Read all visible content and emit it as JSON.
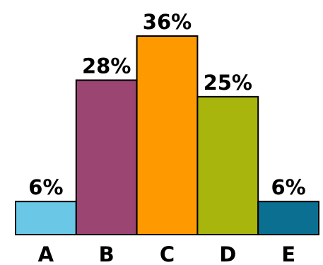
{
  "chart_data": {
    "type": "bar",
    "title": "",
    "xlabel": "",
    "ylabel": "",
    "categories": [
      "A",
      "B",
      "C",
      "D",
      "E"
    ],
    "values": [
      6,
      28,
      36,
      25,
      6
    ],
    "value_labels": [
      "6%",
      "28%",
      "36%",
      "25%",
      "6%"
    ],
    "colors": [
      "#6ac8e6",
      "#9a4572",
      "#ff9900",
      "#a8b50c",
      "#0a6f91"
    ],
    "ylim": [
      0,
      36
    ],
    "grid": false,
    "legend": "none"
  }
}
